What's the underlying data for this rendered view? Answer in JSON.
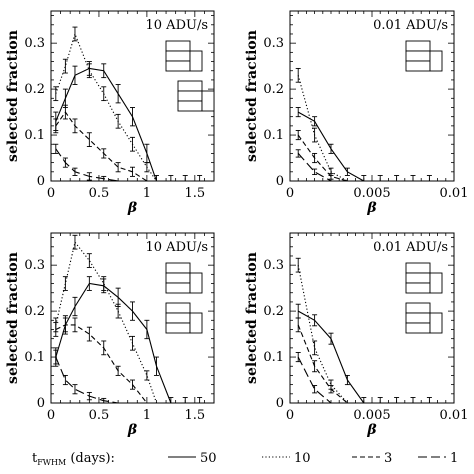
{
  "chart_data": [
    {
      "type": "line",
      "annotation": "10 ADU/s",
      "xlabel": "β",
      "ylabel": "selected fraction",
      "xlim": [
        0,
        1.7
      ],
      "ylim": [
        0,
        0.37
      ],
      "xticks": [
        "0",
        "0.5",
        "1",
        "1.5"
      ],
      "yticks": [
        "0",
        "0.1",
        "0.2",
        "0.3"
      ],
      "icon": {
        "group": "top",
        "highlight_row": 2
      },
      "series": [
        {
          "style": "solid",
          "x": [
            0.05,
            0.15,
            0.25,
            0.4,
            0.55,
            0.7,
            0.85,
            1.0,
            1.1
          ],
          "y": [
            0.13,
            0.18,
            0.23,
            0.245,
            0.24,
            0.19,
            0.14,
            0.06,
            0.0
          ],
          "err": [
            0.02,
            0.02,
            0.02,
            0.015,
            0.015,
            0.02,
            0.02,
            0.02,
            0.0
          ]
        },
        {
          "style": "dotted",
          "x": [
            0.05,
            0.15,
            0.25,
            0.4,
            0.55,
            0.7,
            0.85,
            1.0,
            1.1
          ],
          "y": [
            0.19,
            0.25,
            0.32,
            0.24,
            0.19,
            0.13,
            0.08,
            0.03,
            0.0
          ],
          "err": [
            0.015,
            0.015,
            0.015,
            0.015,
            0.015,
            0.015,
            0.015,
            0.01,
            0.0
          ]
        },
        {
          "style": "dashed",
          "x": [
            0.05,
            0.15,
            0.25,
            0.4,
            0.55,
            0.7,
            0.85,
            1.0
          ],
          "y": [
            0.12,
            0.15,
            0.12,
            0.09,
            0.06,
            0.03,
            0.02,
            0.0
          ],
          "err": [
            0.015,
            0.015,
            0.015,
            0.015,
            0.01,
            0.01,
            0.01,
            0.0
          ]
        },
        {
          "style": "longdash",
          "x": [
            0.05,
            0.15,
            0.25,
            0.4,
            0.55,
            0.7
          ],
          "y": [
            0.07,
            0.04,
            0.02,
            0.01,
            0.005,
            0.0
          ],
          "err": [
            0.01,
            0.01,
            0.008,
            0.008,
            0.005,
            0.0
          ]
        }
      ]
    },
    {
      "type": "line",
      "annotation": "0.01 ADU/s",
      "xlabel": "β",
      "ylabel": "selected fraction",
      "xlim": [
        0,
        0.01
      ],
      "ylim": [
        0,
        0.37
      ],
      "xticks": [
        "0",
        "0.005",
        "0.01"
      ],
      "yticks": [
        "0",
        "0.1",
        "0.2",
        "0.3"
      ],
      "icon": {
        "group": "top",
        "highlight_row": 2
      },
      "series": [
        {
          "style": "solid",
          "x": [
            0.0005,
            0.0015,
            0.0025,
            0.0035,
            0.0045
          ],
          "y": [
            0.15,
            0.13,
            0.07,
            0.02,
            0.0
          ],
          "err": [
            0.01,
            0.01,
            0.01,
            0.008,
            0.0
          ]
        },
        {
          "style": "dotted",
          "x": [
            0.0005,
            0.0015,
            0.0025,
            0.0035
          ],
          "y": [
            0.23,
            0.1,
            0.02,
            0.0
          ],
          "err": [
            0.015,
            0.015,
            0.008,
            0.0
          ]
        },
        {
          "style": "dashed",
          "x": [
            0.0005,
            0.0015,
            0.0025,
            0.0035
          ],
          "y": [
            0.1,
            0.05,
            0.01,
            0.0
          ],
          "err": [
            0.01,
            0.01,
            0.006,
            0.0
          ]
        },
        {
          "style": "longdash",
          "x": [
            0.0005,
            0.0015,
            0.0025
          ],
          "y": [
            0.06,
            0.02,
            0.0
          ],
          "err": [
            0.008,
            0.006,
            0.0
          ]
        }
      ]
    },
    {
      "type": "line",
      "annotation": "10 ADU/s",
      "xlabel": "β",
      "ylabel": "selected fraction",
      "xlim": [
        0,
        1.7
      ],
      "ylim": [
        0,
        0.37
      ],
      "xticks": [
        "0",
        "0.5",
        "1",
        "1.5"
      ],
      "yticks": [
        "0",
        "0.1",
        "0.2",
        "0.3"
      ],
      "icon": {
        "group": "bottom",
        "highlight_row": 2
      },
      "series": [
        {
          "style": "solid",
          "x": [
            0.05,
            0.15,
            0.25,
            0.4,
            0.55,
            0.7,
            0.85,
            1.0,
            1.1,
            1.25
          ],
          "y": [
            0.1,
            0.17,
            0.21,
            0.26,
            0.255,
            0.23,
            0.2,
            0.16,
            0.08,
            0.0
          ],
          "err": [
            0.02,
            0.02,
            0.02,
            0.015,
            0.015,
            0.02,
            0.02,
            0.02,
            0.02,
            0.0
          ]
        },
        {
          "style": "dotted",
          "x": [
            0.05,
            0.15,
            0.25,
            0.4,
            0.55,
            0.7,
            0.85,
            1.0,
            1.1
          ],
          "y": [
            0.17,
            0.26,
            0.35,
            0.31,
            0.26,
            0.2,
            0.13,
            0.06,
            0.0
          ],
          "err": [
            0.015,
            0.015,
            0.015,
            0.015,
            0.015,
            0.015,
            0.015,
            0.01,
            0.0
          ]
        },
        {
          "style": "dashed",
          "x": [
            0.05,
            0.15,
            0.25,
            0.4,
            0.55,
            0.7,
            0.85,
            1.0
          ],
          "y": [
            0.16,
            0.17,
            0.17,
            0.15,
            0.12,
            0.07,
            0.04,
            0.0
          ],
          "err": [
            0.015,
            0.015,
            0.015,
            0.015,
            0.015,
            0.01,
            0.01,
            0.0
          ]
        },
        {
          "style": "longdash",
          "x": [
            0.05,
            0.15,
            0.25,
            0.4,
            0.55,
            0.7
          ],
          "y": [
            0.1,
            0.05,
            0.03,
            0.015,
            0.005,
            0.0
          ],
          "err": [
            0.015,
            0.01,
            0.01,
            0.008,
            0.005,
            0.0
          ]
        }
      ]
    },
    {
      "type": "line",
      "annotation": "0.01 ADU/s",
      "xlabel": "β",
      "ylabel": "selected fraction",
      "xlim": [
        0,
        0.01
      ],
      "ylim": [
        0,
        0.37
      ],
      "xticks": [
        "0",
        "0.005",
        "0.01"
      ],
      "yticks": [
        "0",
        "0.1",
        "0.2",
        "0.3"
      ],
      "icon": {
        "group": "bottom",
        "highlight_row": 2
      },
      "series": [
        {
          "style": "solid",
          "x": [
            0.0005,
            0.0015,
            0.0025,
            0.0035,
            0.0045
          ],
          "y": [
            0.2,
            0.18,
            0.14,
            0.05,
            0.0
          ],
          "err": [
            0.015,
            0.012,
            0.012,
            0.01,
            0.0
          ]
        },
        {
          "style": "dotted",
          "x": [
            0.0005,
            0.0015,
            0.0025,
            0.0035
          ],
          "y": [
            0.3,
            0.12,
            0.04,
            0.0
          ],
          "err": [
            0.015,
            0.015,
            0.01,
            0.0
          ]
        },
        {
          "style": "dashed",
          "x": [
            0.0005,
            0.0015,
            0.0025,
            0.0035
          ],
          "y": [
            0.17,
            0.08,
            0.03,
            0.0
          ],
          "err": [
            0.015,
            0.012,
            0.008,
            0.0
          ]
        },
        {
          "style": "longdash",
          "x": [
            0.0005,
            0.0015,
            0.0025
          ],
          "y": [
            0.1,
            0.03,
            0.0
          ],
          "err": [
            0.01,
            0.008,
            0.0
          ]
        }
      ]
    }
  ],
  "legend": {
    "prefix_main": "t",
    "prefix_sub": "FWHM",
    "prefix_unit": " (days):",
    "entries": [
      {
        "style": "solid",
        "label": "50"
      },
      {
        "style": "dotted",
        "label": "10"
      },
      {
        "style": "dashed",
        "label": "3"
      },
      {
        "style": "longdash",
        "label": "1"
      }
    ]
  }
}
